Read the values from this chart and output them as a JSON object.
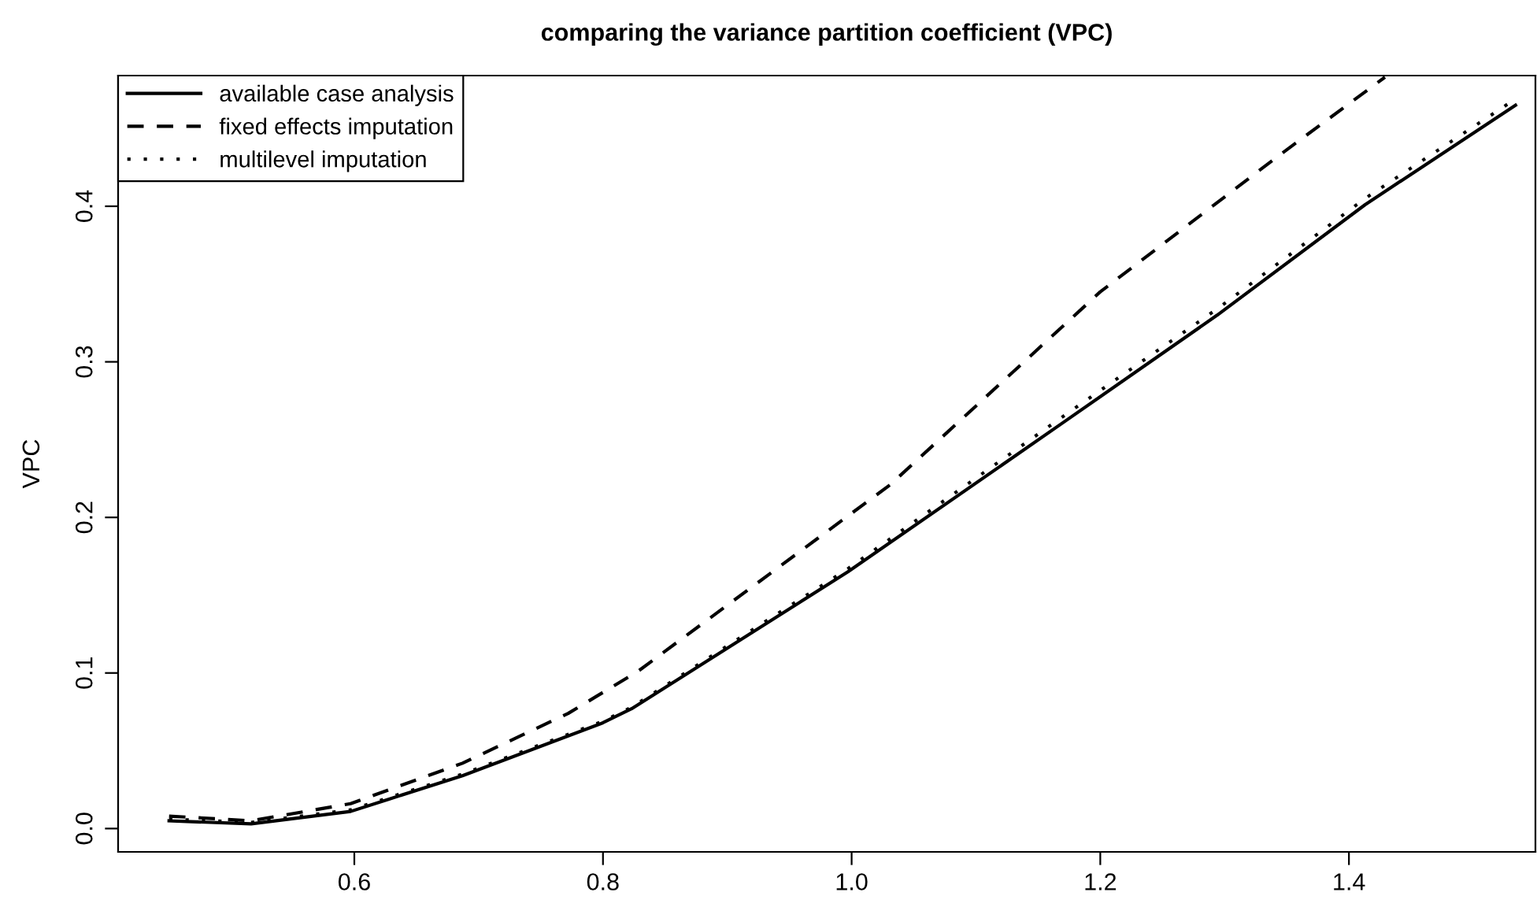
{
  "chart_data": {
    "type": "line",
    "title": "comparing the variance partition coefficient (VPC)",
    "ylabel": "VPC",
    "xlim": [
      0.41,
      1.55
    ],
    "ylim": [
      -0.015,
      0.484
    ],
    "xticks": [
      {
        "value": 0.6,
        "label": "0.6"
      },
      {
        "value": 0.8,
        "label": "0.8"
      },
      {
        "value": 1.0,
        "label": "1.0"
      },
      {
        "value": 1.2,
        "label": "1.2"
      },
      {
        "value": 1.4,
        "label": "1.4"
      }
    ],
    "yticks": [
      {
        "value": 0.0,
        "label": "0.0"
      },
      {
        "value": 0.1,
        "label": "0.1"
      },
      {
        "value": 0.2,
        "label": "0.2"
      },
      {
        "value": 0.3,
        "label": "0.3"
      },
      {
        "value": 0.4,
        "label": "0.4"
      }
    ],
    "grid": false,
    "legend": "top left",
    "marker": "none",
    "series": [
      {
        "name": "available case analysis",
        "color": "#000000",
        "line_style": "solid",
        "x": [
          0.451,
          0.517,
          0.597,
          0.687,
          0.8,
          0.823,
          0.997,
          1.172,
          1.294,
          1.413,
          1.534
        ],
        "values": [
          0.005,
          0.003,
          0.011,
          0.034,
          0.068,
          0.077,
          0.165,
          0.262,
          0.33,
          0.401,
          0.465
        ]
      },
      {
        "name": "fixed effects imputation",
        "color": "#000000",
        "line_style": "dashed",
        "x": [
          0.451,
          0.517,
          0.597,
          0.687,
          0.772,
          0.828,
          1.031,
          1.2,
          1.341,
          1.429
        ],
        "values": [
          0.008,
          0.005,
          0.016,
          0.042,
          0.074,
          0.101,
          0.221,
          0.345,
          0.431,
          0.483
        ]
      },
      {
        "name": "multilevel imputation",
        "color": "#000000",
        "line_style": "dotted",
        "x": [
          0.451,
          0.517,
          0.597,
          0.687,
          0.8,
          0.823,
          0.997,
          1.172,
          1.294,
          1.413,
          1.534
        ],
        "values": [
          0.006,
          0.004,
          0.012,
          0.035,
          0.069,
          0.078,
          0.167,
          0.266,
          0.334,
          0.405,
          0.469
        ]
      }
    ]
  }
}
